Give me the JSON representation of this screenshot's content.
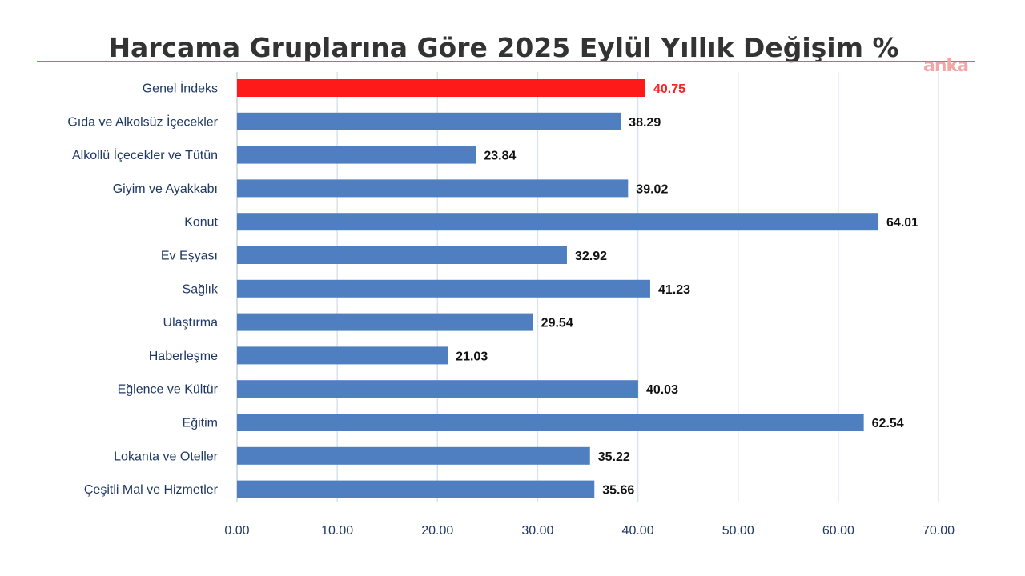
{
  "watermark": "anka",
  "chart_data": {
    "type": "bar",
    "orientation": "horizontal",
    "title": "Harcama Gruplarına Göre 2025 Eylül Yıllık Değişim %",
    "categories": [
      "Genel İndeks",
      "Gıda ve Alkolsüz İçecekler",
      "Alkollü İçecekler ve Tütün",
      "Giyim ve Ayakkabı",
      "Konut",
      "Ev Eşyası",
      "Sağlık",
      "Ulaştırma",
      "Haberleşme",
      "Eğlence ve Kültür",
      "Eğitim",
      "Lokanta ve Oteller",
      "Çeşitli Mal ve Hizmetler"
    ],
    "values": [
      40.75,
      38.29,
      23.84,
      39.02,
      64.01,
      32.92,
      41.23,
      29.54,
      21.03,
      40.03,
      62.54,
      35.22,
      35.66
    ],
    "value_labels": [
      "40.75",
      "38.29",
      "23.84",
      "39.02",
      "64.01",
      "32.92",
      "41.23",
      "29.54",
      "21.03",
      "40.03",
      "62.54",
      "35.22",
      "35.66"
    ],
    "xlim": [
      0,
      70
    ],
    "xticks": [
      "0.00",
      "10.00",
      "20.00",
      "30.00",
      "40.00",
      "50.00",
      "60.00",
      "70.00"
    ],
    "xlabel": "",
    "ylabel": "",
    "grid": "vertical",
    "colors": {
      "bar": "#4f7fc0",
      "highlight_bar": "#ff1a1a",
      "highlight_label": "#ff2020",
      "value_label": "#111111",
      "category_label": "#1f3864",
      "tick_label": "#1f3864",
      "gridline": "#d9e3ef"
    },
    "highlight_index": 0
  }
}
